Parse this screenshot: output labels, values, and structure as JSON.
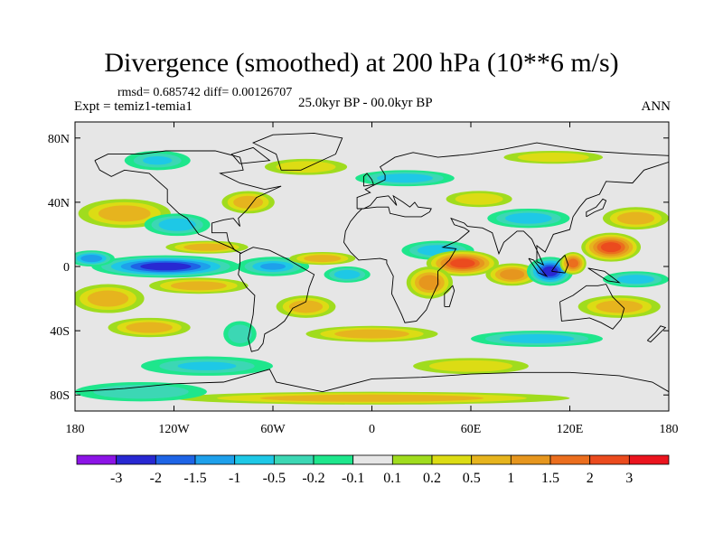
{
  "title": "Divergence (smoothed) at 200 hPa (10**6 m/s)",
  "stats_line": "rmsd= 0.685742 diff= 0.00126707",
  "experiment": "Expt = temiz1-temia1",
  "period": "25.0kyr BP - 00.0kyr BP",
  "season": "ANN",
  "map": {
    "lon_range": [
      -180,
      180
    ],
    "lat_range": [
      -90,
      90
    ],
    "lat_ticks": [
      {
        "value": 80,
        "label": "80N"
      },
      {
        "value": 40,
        "label": "40N"
      },
      {
        "value": 0,
        "label": "0"
      },
      {
        "value": -40,
        "label": "40S"
      },
      {
        "value": -80,
        "label": "80S"
      }
    ],
    "lon_ticks": [
      {
        "value": -180,
        "label": "180"
      },
      {
        "value": -120,
        "label": "120W"
      },
      {
        "value": -60,
        "label": "60W"
      },
      {
        "value": 0,
        "label": "0"
      },
      {
        "value": 60,
        "label": "60E"
      },
      {
        "value": 120,
        "label": "120E"
      },
      {
        "value": 180,
        "label": "180"
      }
    ]
  },
  "colorbar": {
    "colors": [
      "#8c14e6",
      "#2828d2",
      "#1e64e6",
      "#1ea0eb",
      "#1ec8e6",
      "#3cd7b4",
      "#1ee68c",
      "#e6e6e6",
      "#a0dc1e",
      "#dcdc14",
      "#e6b41e",
      "#e6961e",
      "#eb6e1e",
      "#eb4b1e",
      "#eb141e"
    ],
    "labels": [
      "-3",
      "-2",
      "-1.5",
      "-1",
      "-0.5",
      "-0.2",
      "-0.1",
      "0.1",
      "0.2",
      "0.5",
      "1",
      "1.5",
      "2",
      "3"
    ]
  },
  "field_blobs": [
    {
      "lon": -150,
      "lat": 33,
      "rx": 28,
      "ry": 9,
      "value": 1.0
    },
    {
      "lon": -118,
      "lat": 26,
      "rx": 20,
      "ry": 7,
      "value": -0.8
    },
    {
      "lon": -75,
      "lat": 40,
      "rx": 16,
      "ry": 7,
      "value": 0.6
    },
    {
      "lon": -125,
      "lat": 0,
      "rx": 45,
      "ry": 7,
      "value": -2.2
    },
    {
      "lon": -170,
      "lat": 5,
      "rx": 14,
      "ry": 5,
      "value": -1.2
    },
    {
      "lon": -60,
      "lat": 0,
      "rx": 22,
      "ry": 6,
      "value": -1.0
    },
    {
      "lon": -100,
      "lat": 12,
      "rx": 25,
      "ry": 4,
      "value": 0.8
    },
    {
      "lon": -105,
      "lat": -12,
      "rx": 30,
      "ry": 5,
      "value": 0.7
    },
    {
      "lon": -160,
      "lat": -20,
      "rx": 22,
      "ry": 9,
      "value": 0.7
    },
    {
      "lon": -135,
      "lat": -38,
      "rx": 25,
      "ry": 6,
      "value": 0.9
    },
    {
      "lon": -80,
      "lat": -42,
      "rx": 10,
      "ry": 8,
      "value": -0.4
    },
    {
      "lon": -30,
      "lat": 5,
      "rx": 20,
      "ry": 4,
      "value": 0.6
    },
    {
      "lon": -15,
      "lat": -5,
      "rx": 14,
      "ry": 5,
      "value": -0.7
    },
    {
      "lon": -40,
      "lat": -25,
      "rx": 18,
      "ry": 7,
      "value": 0.6
    },
    {
      "lon": 40,
      "lat": 10,
      "rx": 22,
      "ry": 6,
      "value": -0.7
    },
    {
      "lon": 55,
      "lat": 2,
      "rx": 22,
      "ry": 8,
      "value": 2.6
    },
    {
      "lon": 35,
      "lat": -10,
      "rx": 14,
      "ry": 10,
      "value": 1.1
    },
    {
      "lon": 85,
      "lat": -5,
      "rx": 16,
      "ry": 7,
      "value": 1.2
    },
    {
      "lon": 108,
      "lat": -3,
      "rx": 14,
      "ry": 9,
      "value": -2.8
    },
    {
      "lon": 122,
      "lat": 2,
      "rx": 8,
      "ry": 7,
      "value": 1.6
    },
    {
      "lon": 145,
      "lat": 12,
      "rx": 18,
      "ry": 9,
      "value": 2.2
    },
    {
      "lon": 160,
      "lat": -8,
      "rx": 20,
      "ry": 5,
      "value": -0.8
    },
    {
      "lon": 160,
      "lat": 30,
      "rx": 20,
      "ry": 7,
      "value": 0.8
    },
    {
      "lon": 150,
      "lat": -25,
      "rx": 25,
      "ry": 7,
      "value": 0.6
    },
    {
      "lon": 95,
      "lat": 30,
      "rx": 25,
      "ry": 6,
      "value": -0.9
    },
    {
      "lon": 65,
      "lat": 42,
      "rx": 20,
      "ry": 5,
      "value": 0.5
    },
    {
      "lon": 20,
      "lat": 55,
      "rx": 30,
      "ry": 5,
      "value": -0.6
    },
    {
      "lon": 110,
      "lat": 68,
      "rx": 30,
      "ry": 4,
      "value": 0.5
    },
    {
      "lon": -130,
      "lat": 66,
      "rx": 20,
      "ry": 6,
      "value": -0.5
    },
    {
      "lon": -40,
      "lat": 62,
      "rx": 25,
      "ry": 5,
      "value": 0.5
    },
    {
      "lon": 0,
      "lat": -42,
      "rx": 40,
      "ry": 5,
      "value": 0.6
    },
    {
      "lon": 100,
      "lat": -45,
      "rx": 40,
      "ry": 5,
      "value": -0.6
    },
    {
      "lon": -100,
      "lat": -62,
      "rx": 40,
      "ry": 6,
      "value": -0.5
    },
    {
      "lon": 60,
      "lat": -62,
      "rx": 35,
      "ry": 5,
      "value": 0.5
    },
    {
      "lon": 0,
      "lat": -82,
      "rx": 120,
      "ry": 4,
      "value": 0.6
    },
    {
      "lon": -140,
      "lat": -78,
      "rx": 40,
      "ry": 6,
      "value": -0.4
    }
  ]
}
